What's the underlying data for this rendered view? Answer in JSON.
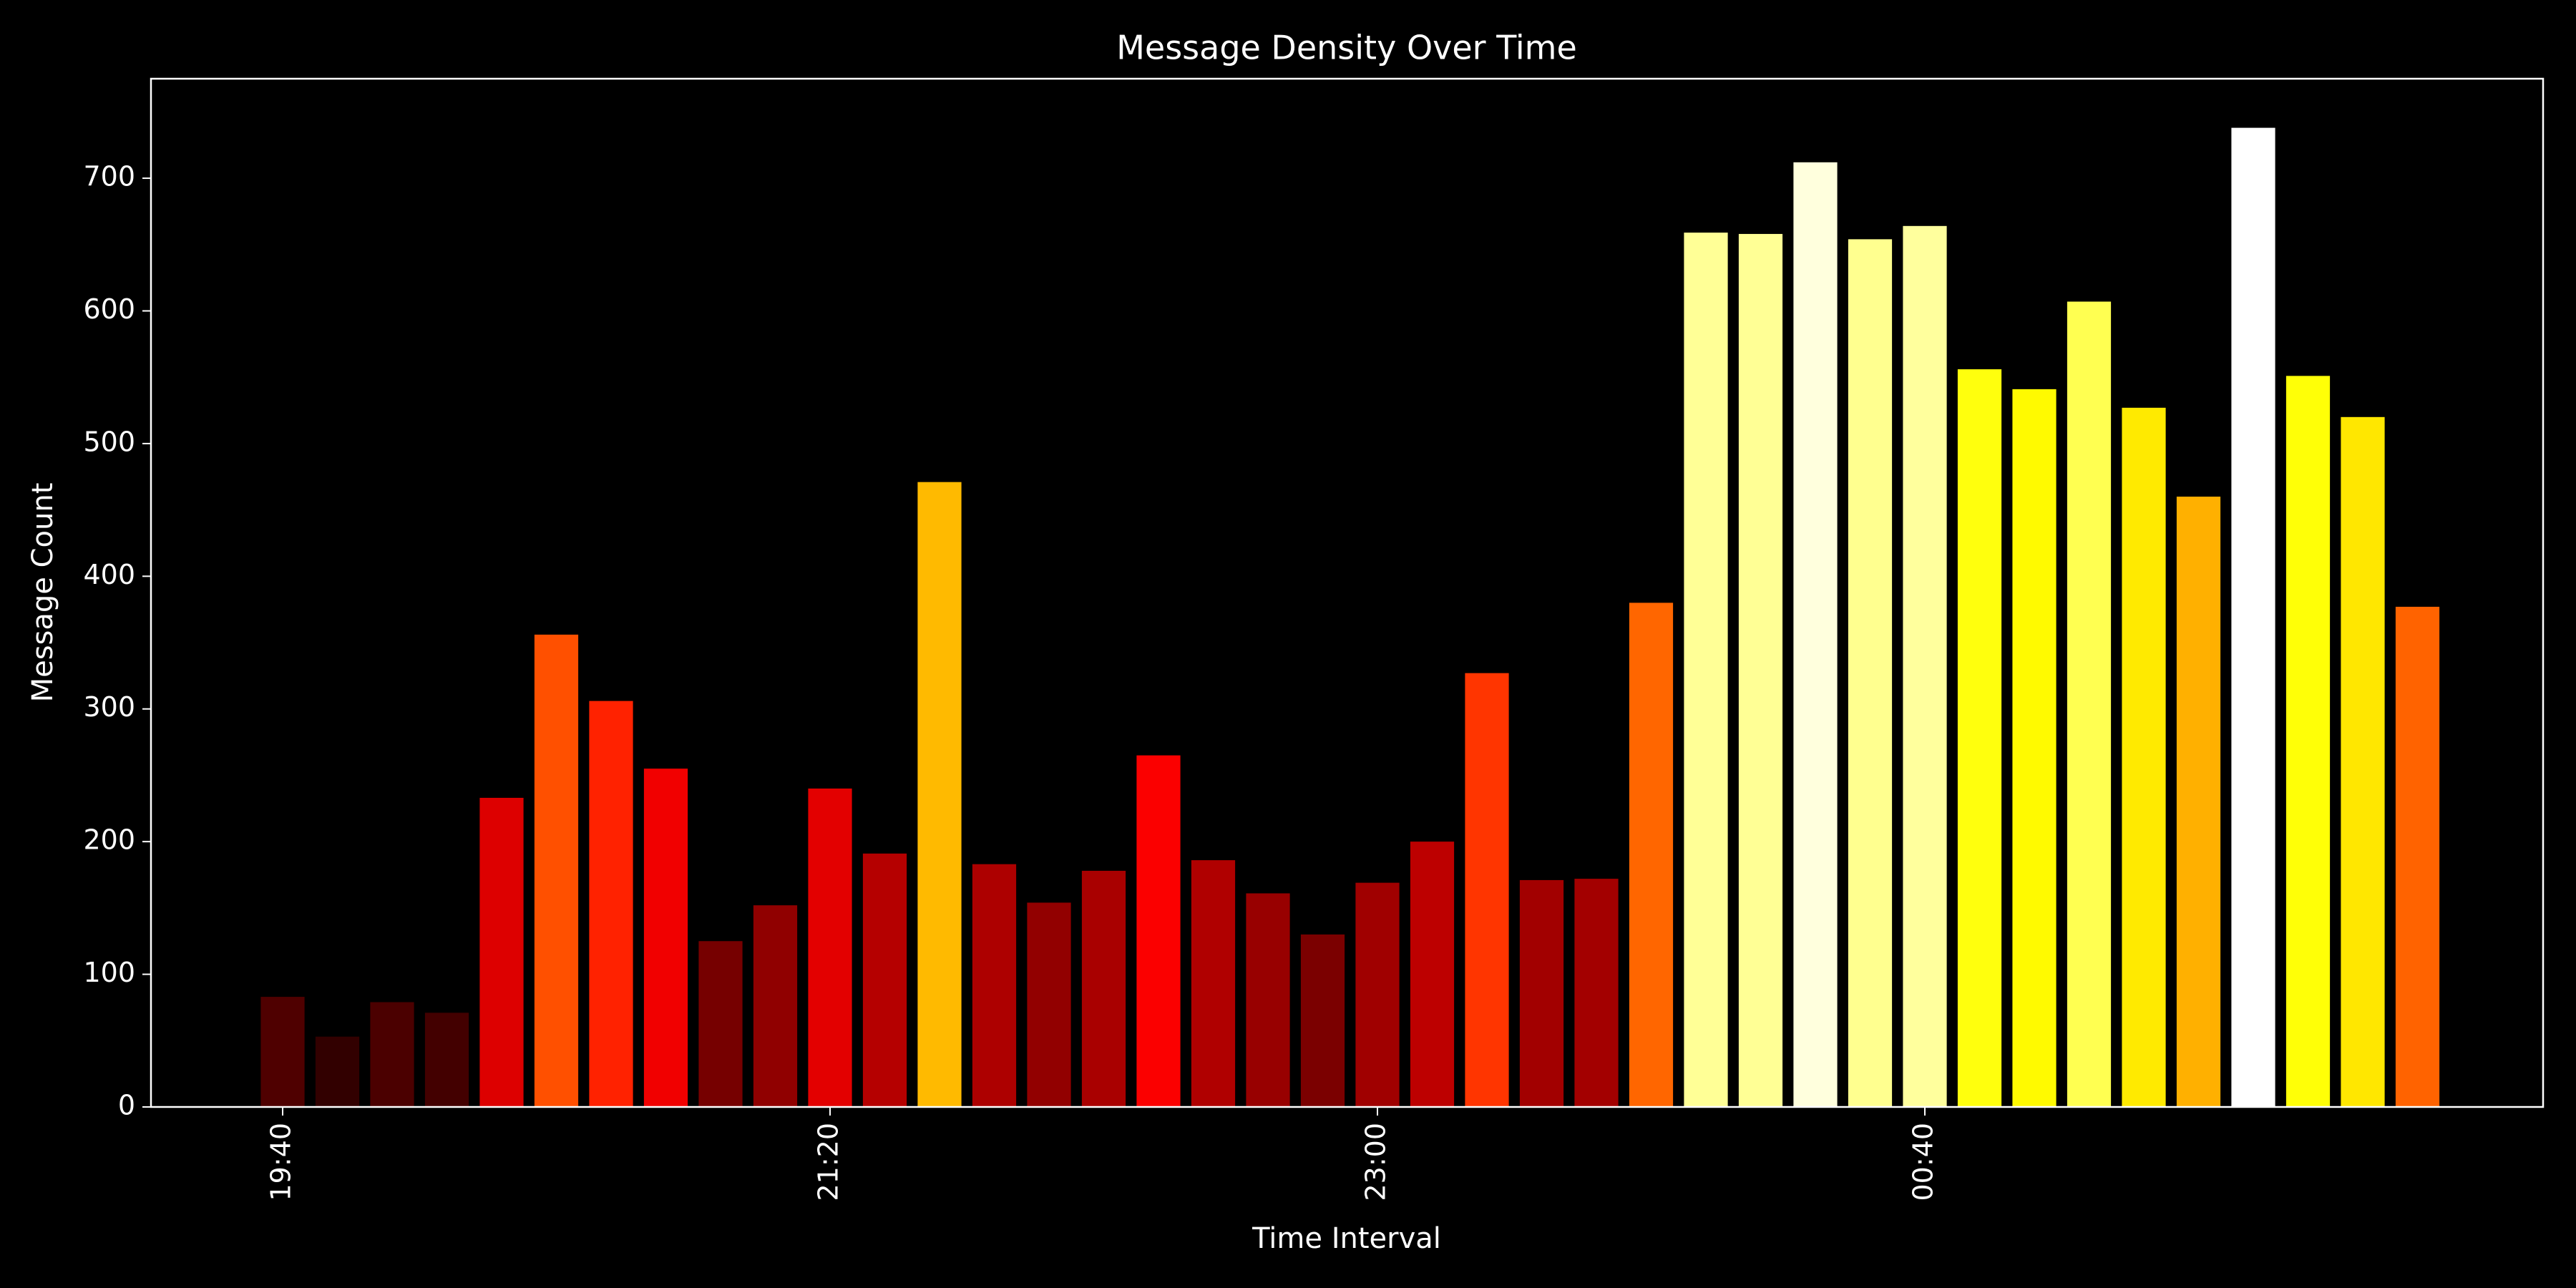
{
  "chart_data": {
    "type": "bar",
    "title": "Message Density Over Time",
    "x_label": "Time Interval",
    "y_label": "Message Count",
    "categories": [
      "19:40",
      null,
      null,
      null,
      null,
      null,
      null,
      null,
      null,
      null,
      "21:20",
      null,
      null,
      null,
      null,
      null,
      null,
      null,
      null,
      null,
      "23:00",
      null,
      null,
      null,
      null,
      null,
      null,
      null,
      null,
      null,
      "00:40",
      null,
      null,
      null,
      null,
      null,
      null,
      null,
      null,
      null
    ],
    "values": [
      83,
      53,
      79,
      71,
      233,
      356,
      306,
      255,
      125,
      152,
      240,
      191,
      471,
      183,
      154,
      178,
      265,
      186,
      161,
      130,
      169,
      200,
      327,
      171,
      172,
      380,
      659,
      658,
      712,
      654,
      664,
      556,
      541,
      607,
      527,
      460,
      738,
      551,
      520,
      377
    ],
    "colors": [
      "#4f0000",
      "#320000",
      "#4b0000",
      "#430000",
      "#dd0000",
      "#ff5000",
      "#ff2200",
      "#f10000",
      "#760000",
      "#900000",
      "#e30000",
      "#b50000",
      "#ffba00",
      "#ad0000",
      "#920000",
      "#a90000",
      "#fb0000",
      "#b00000",
      "#980000",
      "#7b0000",
      "#a00000",
      "#bd0000",
      "#ff3500",
      "#a20000",
      "#a30000",
      "#ff6600",
      "#ffff96",
      "#ffff95",
      "#ffffdd",
      "#ffff8f",
      "#ffff9d",
      "#ffff0d",
      "#fffa00",
      "#ffff51",
      "#ffea00",
      "#ffb000",
      "#ffffff",
      "#ffff07",
      "#ffe700",
      "#ff6300"
    ],
    "ylim": [
      0,
      775
    ],
    "yticks": [
      0,
      100,
      200,
      300,
      400,
      500,
      600,
      700
    ],
    "grid": false
  }
}
